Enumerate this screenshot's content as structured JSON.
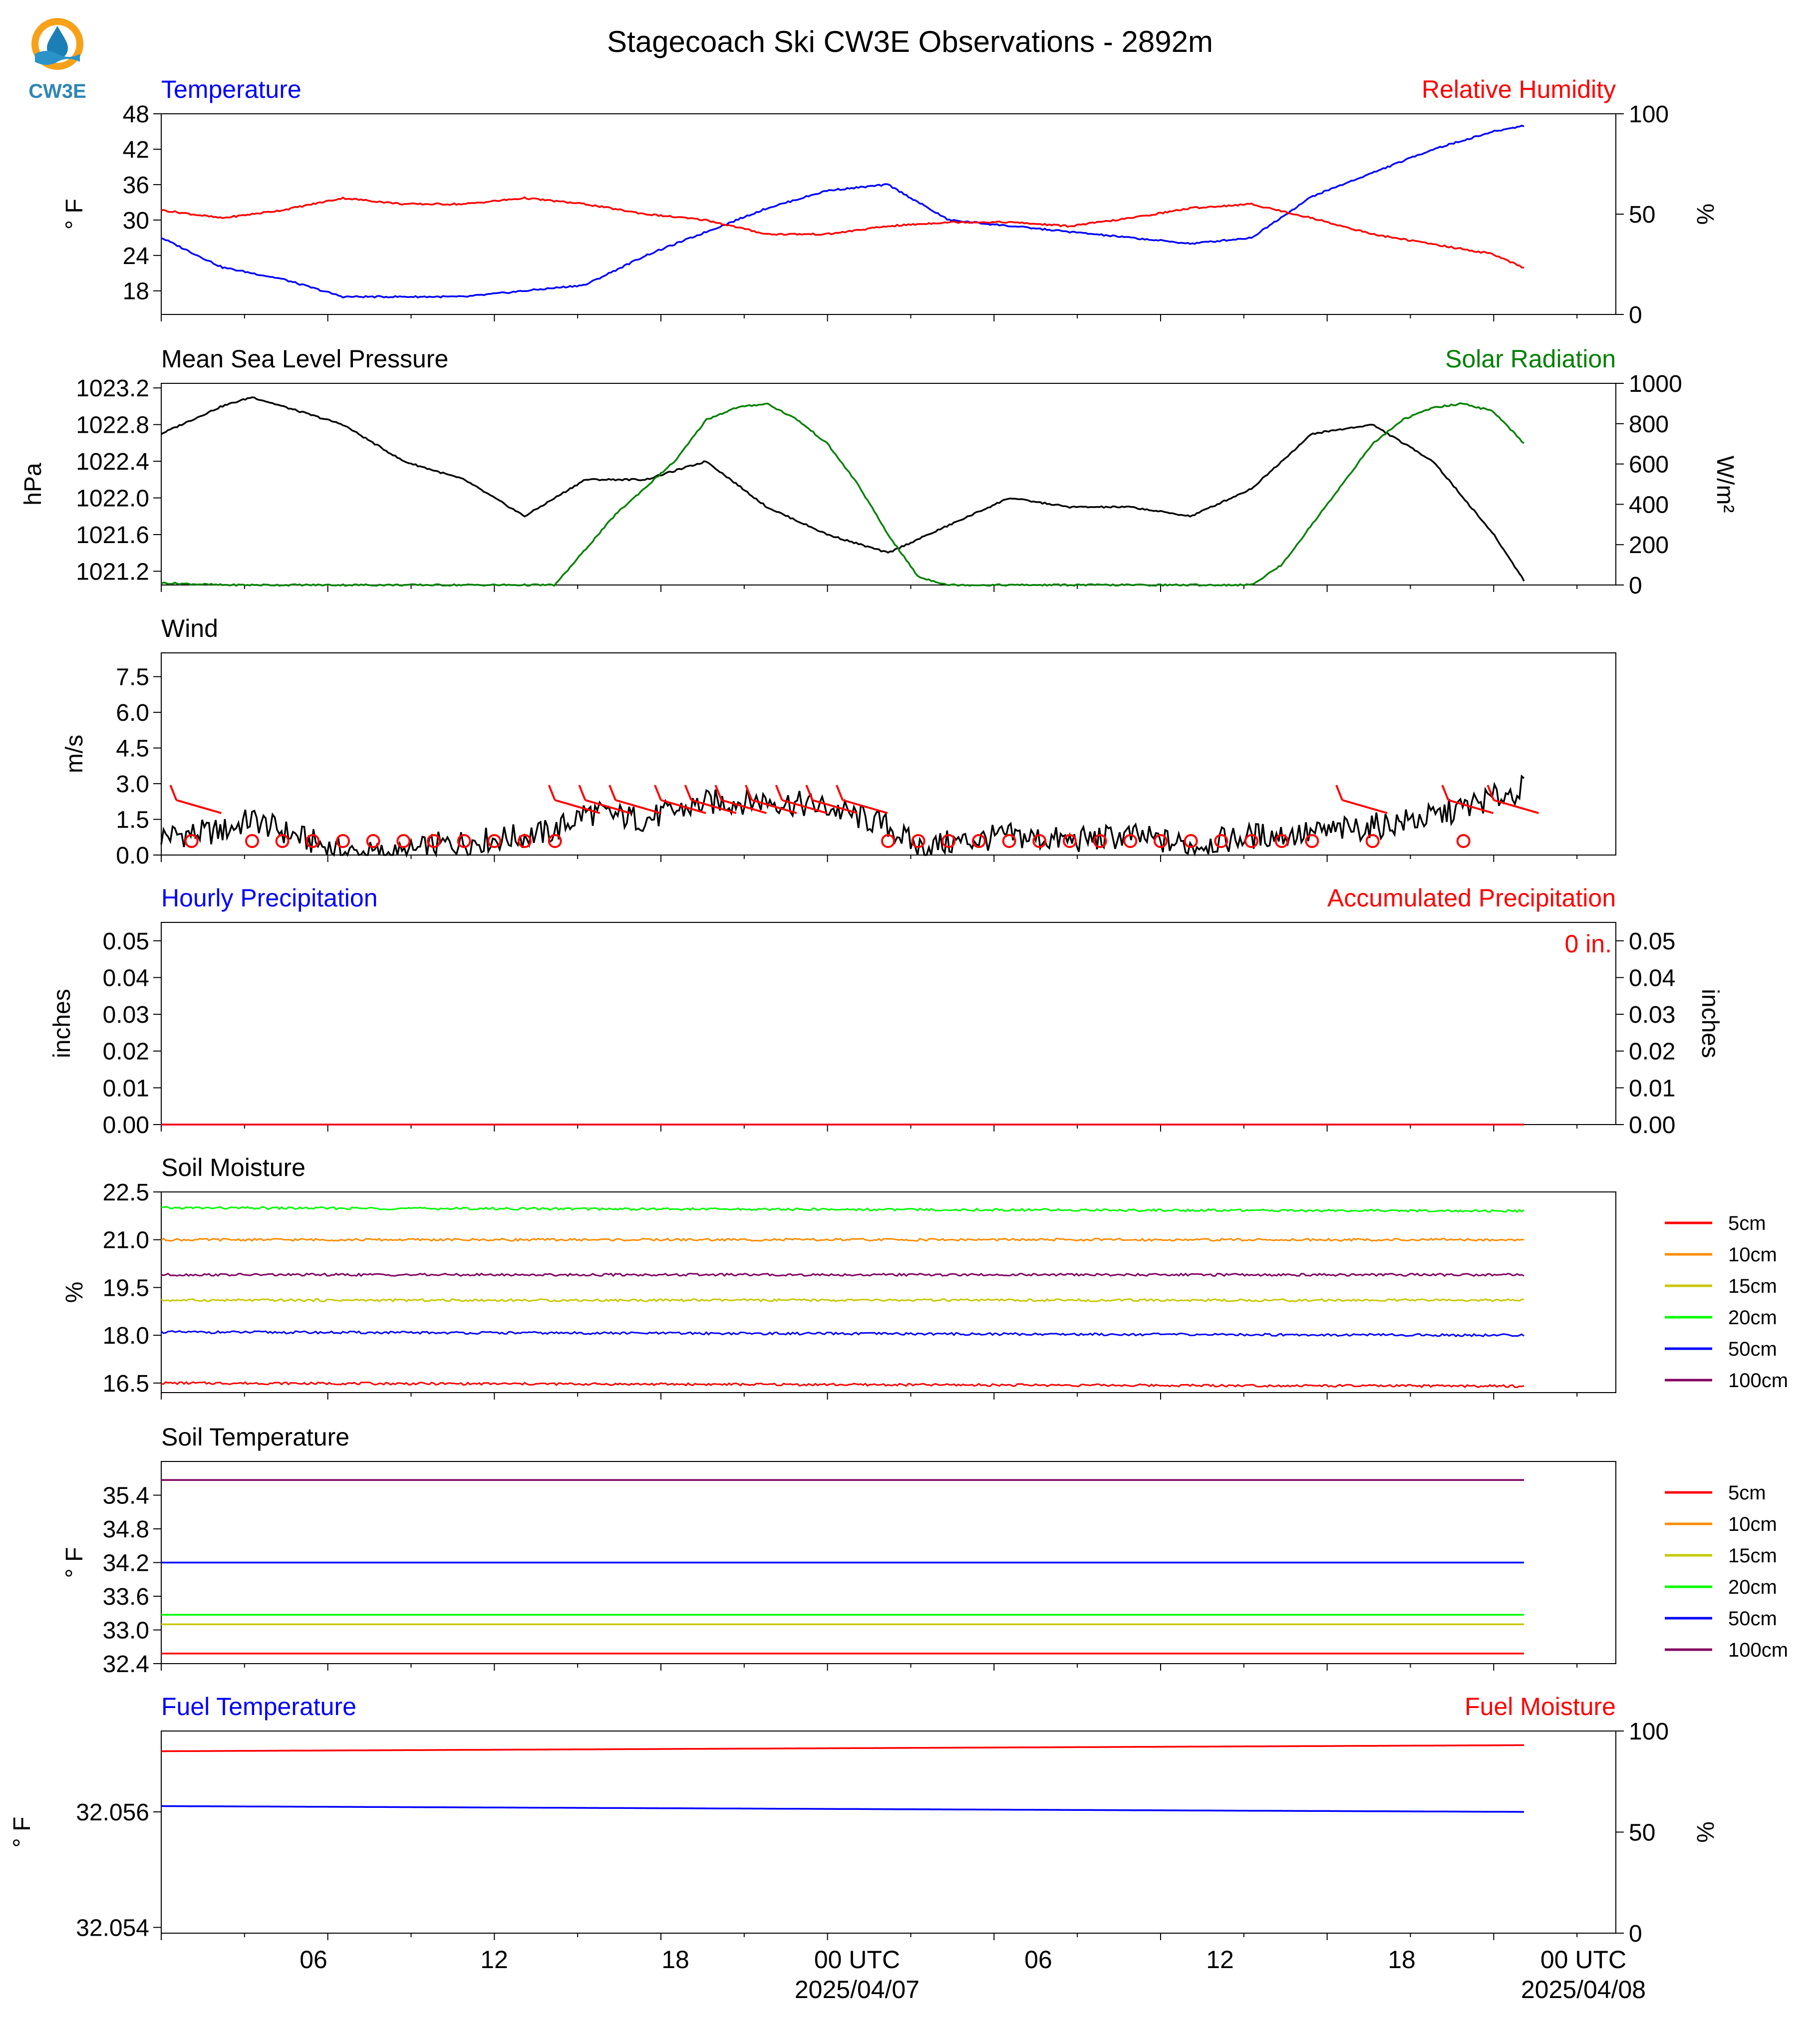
{
  "title": "Stagecoach Ski CW3E Observations - 2892m",
  "logo": {
    "text": "CW3E",
    "colors": {
      "ring": "#f7a11a",
      "drop": "#1b7fb5",
      "wave": "#2a93c8"
    }
  },
  "x_axis": {
    "tick_labels": [
      "06",
      "12",
      "18",
      "00 UTC",
      "06",
      "12",
      "18",
      "00 UTC"
    ],
    "date_labels": [
      "2025/04/07",
      "2025/04/08"
    ]
  },
  "chart_data": [
    {
      "type": "line",
      "title_left": "Temperature",
      "title_right": "Relative Humidity",
      "ylabel": "° F",
      "ylabel_right": "%",
      "yticks": [
        "18",
        "24",
        "30",
        "36",
        "42",
        "48"
      ],
      "yticks_right": [
        "0",
        "50",
        "100"
      ],
      "ylim": [
        14,
        48
      ],
      "ylim_right": [
        0,
        100
      ],
      "x_hours": [
        0,
        2,
        4,
        6,
        8,
        10,
        12,
        14,
        16,
        18,
        20,
        22,
        24,
        26,
        28,
        30,
        32,
        34,
        36,
        38,
        40,
        42,
        44,
        45
      ],
      "series": [
        {
          "color": "#0000ff",
          "axis": "left",
          "values": [
            27,
            22,
            20,
            17,
            17,
            17,
            18,
            19,
            24,
            28,
            32,
            35,
            36,
            30,
            29,
            28,
            27,
            26,
            27,
            34,
            38,
            42,
            45,
            46
          ]
        },
        {
          "color": "#ff0000",
          "axis": "right",
          "values": [
            52,
            48,
            52,
            58,
            55,
            55,
            58,
            55,
            50,
            47,
            40,
            40,
            44,
            46,
            46,
            44,
            48,
            53,
            55,
            48,
            40,
            35,
            30,
            23
          ]
        }
      ]
    },
    {
      "type": "line",
      "title_left": "Mean Sea Level Pressure",
      "title_right": "Solar Radiation",
      "ylabel": "hPa",
      "ylabel_right": "W/m²",
      "yticks": [
        "1021.2",
        "1021.6",
        "1022.0",
        "1022.4",
        "1022.8",
        "1023.2"
      ],
      "yticks_right": [
        "0",
        "200",
        "400",
        "600",
        "800",
        "1000"
      ],
      "ylim": [
        1021.05,
        1023.25
      ],
      "ylim_right": [
        0,
        1000
      ],
      "x_hours": [
        0,
        2,
        3,
        4,
        6,
        8,
        10,
        12,
        14,
        16,
        18,
        20,
        22,
        24,
        26,
        28,
        30,
        32,
        34,
        36,
        38,
        40,
        42,
        44,
        45
      ],
      "series": [
        {
          "color": "#000000",
          "axis": "left",
          "values": [
            1022.7,
            1023.0,
            1023.1,
            1023.0,
            1022.8,
            1022.4,
            1022.2,
            1021.8,
            1022.2,
            1022.2,
            1022.4,
            1021.9,
            1021.6,
            1021.4,
            1021.7,
            1022.0,
            1021.9,
            1021.9,
            1021.8,
            1022.1,
            1022.7,
            1022.8,
            1022.4,
            1021.6,
            1021.1
          ]
        },
        {
          "color": "#008000",
          "axis": "right",
          "x_hours": [
            0,
            2,
            12,
            13,
            15,
            17,
            18,
            19,
            20,
            21,
            22,
            23,
            24,
            25,
            26,
            30,
            35,
            36,
            37,
            38,
            39,
            40,
            41,
            42,
            43,
            44,
            45
          ],
          "values": [
            10,
            0,
            0,
            0,
            350,
            620,
            820,
            880,
            900,
            820,
            700,
            500,
            250,
            40,
            0,
            0,
            0,
            0,
            100,
            300,
            500,
            700,
            820,
            880,
            900,
            860,
            700
          ]
        }
      ]
    },
    {
      "type": "line",
      "title_left": "Wind",
      "ylabel": "m/s",
      "yticks": [
        "0.0",
        "1.5",
        "3.0",
        "4.5",
        "6.0",
        "7.5"
      ],
      "ylim": [
        0,
        8.5
      ],
      "x_hours": [
        0,
        2,
        3,
        4,
        6,
        8,
        9,
        12,
        13,
        14,
        16,
        18,
        20,
        22,
        24,
        25,
        26,
        28,
        30,
        32,
        34,
        36,
        38,
        40,
        42,
        43,
        44,
        45
      ],
      "series": [
        {
          "color": "#000000",
          "axis": "left",
          "values": [
            0.8,
            1.0,
            1.5,
            1.0,
            0.1,
            0.0,
            0.4,
            0.8,
            1.0,
            1.8,
            1.5,
            2.2,
            2.3,
            2.0,
            1.2,
            0.3,
            0.5,
            0.8,
            0.6,
            0.8,
            0.4,
            0.8,
            0.9,
            1.2,
            1.6,
            2.0,
            2.4,
            2.8
          ]
        }
      ]
    },
    {
      "type": "line",
      "title_left": "Hourly Precipitation",
      "title_right": "Accumulated Precipitation",
      "ylabel": "inches",
      "ylabel_right": "inches",
      "annotation": "0 in.",
      "yticks": [
        "0.00",
        "0.01",
        "0.02",
        "0.03",
        "0.04",
        "0.05"
      ],
      "yticks_right": [
        "0.00",
        "0.01",
        "0.02",
        "0.03",
        "0.04",
        "0.05"
      ],
      "ylim": [
        0,
        0.055
      ],
      "x_hours": [
        0,
        45
      ],
      "series": [
        {
          "color": "#0000ff",
          "axis": "left",
          "values": [
            0,
            0
          ]
        },
        {
          "color": "#ff0000",
          "axis": "right",
          "values": [
            0,
            0
          ]
        }
      ]
    },
    {
      "type": "line",
      "title_left": "Soil Moisture",
      "ylabel": "%",
      "yticks": [
        "16.5",
        "18.0",
        "19.5",
        "21.0",
        "22.5"
      ],
      "ylim": [
        16.2,
        22.5
      ],
      "x_hours": [
        0,
        45
      ],
      "legend": {
        "placement": "right",
        "entries": [
          "5cm",
          "10cm",
          "15cm",
          "20cm",
          "50cm",
          "100cm"
        ]
      },
      "series": [
        {
          "name": "5cm",
          "color": "#ff0000",
          "axis": "left",
          "values": [
            16.5,
            16.4
          ]
        },
        {
          "name": "10cm",
          "color": "#ff8c00",
          "axis": "left",
          "values": [
            21.0,
            21.0
          ]
        },
        {
          "name": "15cm",
          "color": "#c8c800",
          "axis": "left",
          "values": [
            19.1,
            19.1
          ]
        },
        {
          "name": "20cm",
          "color": "#00ff00",
          "axis": "left",
          "values": [
            22.0,
            21.9
          ]
        },
        {
          "name": "50cm",
          "color": "#0000ff",
          "axis": "left",
          "values": [
            18.1,
            18.0
          ]
        },
        {
          "name": "100cm",
          "color": "#800060",
          "axis": "left",
          "values": [
            19.9,
            19.9
          ]
        }
      ]
    },
    {
      "type": "line",
      "title_left": "Soil Temperature",
      "ylabel": "° F",
      "yticks": [
        "32.4",
        "33.0",
        "33.6",
        "34.2",
        "34.8",
        "35.4"
      ],
      "ylim": [
        32.4,
        36.0
      ],
      "x_hours": [
        0,
        45
      ],
      "legend": {
        "placement": "right",
        "entries": [
          "5cm",
          "10cm",
          "15cm",
          "20cm",
          "50cm",
          "100cm"
        ]
      },
      "series": [
        {
          "name": "5cm",
          "color": "#ff0000",
          "axis": "left",
          "values": [
            32.58,
            32.58
          ]
        },
        {
          "name": "10cm",
          "color": "#ff8c00",
          "axis": "left",
          "values": [
            33.1,
            33.1
          ]
        },
        {
          "name": "15cm",
          "color": "#c8c800",
          "axis": "left",
          "values": [
            33.1,
            33.1
          ]
        },
        {
          "name": "20cm",
          "color": "#00ff00",
          "axis": "left",
          "values": [
            33.27,
            33.27
          ]
        },
        {
          "name": "50cm",
          "color": "#0000ff",
          "axis": "left",
          "values": [
            34.2,
            34.2
          ]
        },
        {
          "name": "100cm",
          "color": "#800060",
          "axis": "left",
          "values": [
            35.67,
            35.67
          ]
        }
      ]
    },
    {
      "type": "line",
      "title_left": "Fuel Temperature",
      "title_right": "Fuel Moisture",
      "ylabel": "° F",
      "ylabel_right": "%",
      "yticks": [
        "32.054",
        "32.056"
      ],
      "yticks_right": [
        "0",
        "50",
        "100"
      ],
      "ylim": [
        32.0539,
        32.0574
      ],
      "ylim_right": [
        0,
        100
      ],
      "x_hours": [
        0,
        45
      ],
      "series": [
        {
          "color": "#0000ff",
          "axis": "left",
          "values": [
            32.0561,
            32.056
          ]
        },
        {
          "color": "#ff0000",
          "axis": "right",
          "values": [
            90,
            93
          ]
        }
      ]
    }
  ]
}
